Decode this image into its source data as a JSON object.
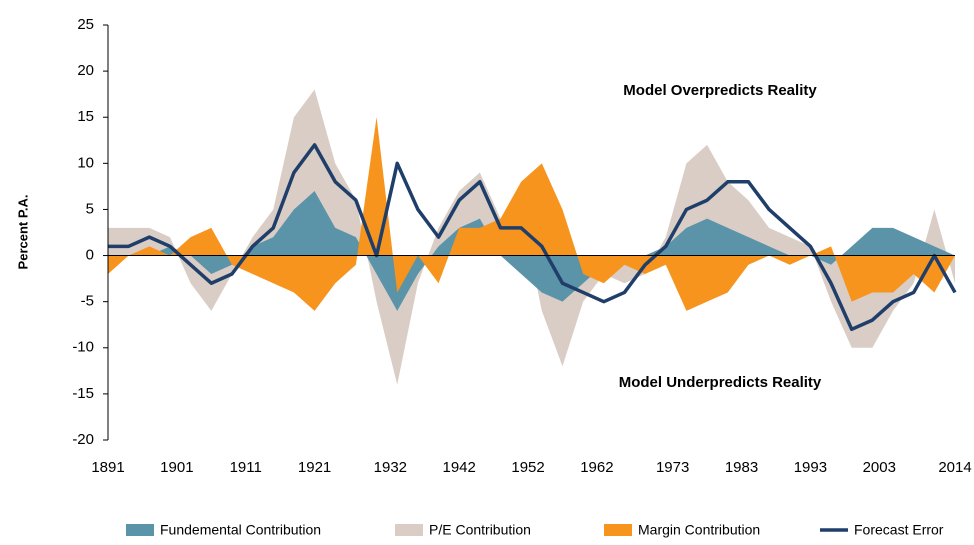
{
  "chart_data": {
    "type": "area-line",
    "ylabel": "Percent P.A.",
    "annotations": [
      "Model Overpredicts Reality",
      "Model Underpredicts Reality"
    ],
    "x": [
      1891,
      1894,
      1897,
      1900,
      1903,
      1906,
      1909,
      1912,
      1915,
      1918,
      1921,
      1924,
      1927,
      1930,
      1933,
      1936,
      1939,
      1942,
      1945,
      1948,
      1951,
      1954,
      1957,
      1960,
      1963,
      1966,
      1969,
      1972,
      1975,
      1978,
      1981,
      1984,
      1987,
      1990,
      1993,
      1996,
      1999,
      2002,
      2005,
      2008,
      2011,
      2014
    ],
    "xlim": [
      1891,
      2014
    ],
    "xticks": [
      1891,
      1901,
      1911,
      1921,
      1932,
      1942,
      1952,
      1962,
      1973,
      1983,
      1993,
      2003,
      2014
    ],
    "ylim": [
      -20,
      25
    ],
    "yticks": [
      -20,
      -15,
      -10,
      -5,
      0,
      5,
      10,
      15,
      20,
      25
    ],
    "series": [
      {
        "name": "Fundemental Contribution",
        "color": "#5b93a8",
        "kind": "area",
        "values": [
          0,
          0,
          0,
          1,
          0,
          -2,
          -1,
          1,
          2,
          5,
          7,
          3,
          2,
          -2,
          -6,
          -2,
          1,
          3,
          4,
          0,
          -2,
          -4,
          -5,
          -3,
          -1,
          -1,
          0,
          1,
          3,
          4,
          3,
          2,
          1,
          0,
          0,
          -1,
          1,
          3,
          3,
          2,
          1,
          0
        ]
      },
      {
        "name": "P/E Contribution",
        "color": "#d9cdc6",
        "kind": "area",
        "values": [
          3,
          3,
          3,
          2,
          -3,
          -6,
          -2,
          2,
          5,
          15,
          18,
          10,
          6,
          -5,
          -14,
          -3,
          3,
          7,
          9,
          4,
          5,
          -6,
          -12,
          -5,
          -2,
          -3,
          -2,
          2,
          10,
          12,
          8,
          6,
          3,
          2,
          1,
          -5,
          -10,
          -10,
          -6,
          -3,
          5,
          -3
        ]
      },
      {
        "name": "Margin Contribution",
        "color": "#f7941d",
        "kind": "area",
        "values": [
          -2,
          0,
          1,
          0,
          2,
          3,
          -1,
          -2,
          -3,
          -4,
          -6,
          -3,
          -1,
          15,
          -4,
          0,
          -3,
          3,
          3,
          4,
          8,
          10,
          5,
          -2,
          -3,
          -1,
          -2,
          -1,
          -6,
          -5,
          -4,
          -1,
          0,
          -1,
          0,
          1,
          -5,
          -4,
          -4,
          -2,
          -4,
          0
        ]
      },
      {
        "name": "Forecast Error",
        "color": "#1f3f6a",
        "kind": "line",
        "values": [
          1,
          1,
          2,
          1,
          -1,
          -3,
          -2,
          1,
          3,
          9,
          12,
          8,
          6,
          0,
          10,
          5,
          2,
          6,
          8,
          3,
          3,
          1,
          -3,
          -4,
          -5,
          -4,
          -1,
          1,
          5,
          6,
          8,
          8,
          5,
          3,
          1,
          -3,
          -8,
          -7,
          -5,
          -4,
          0,
          -4
        ]
      }
    ]
  }
}
